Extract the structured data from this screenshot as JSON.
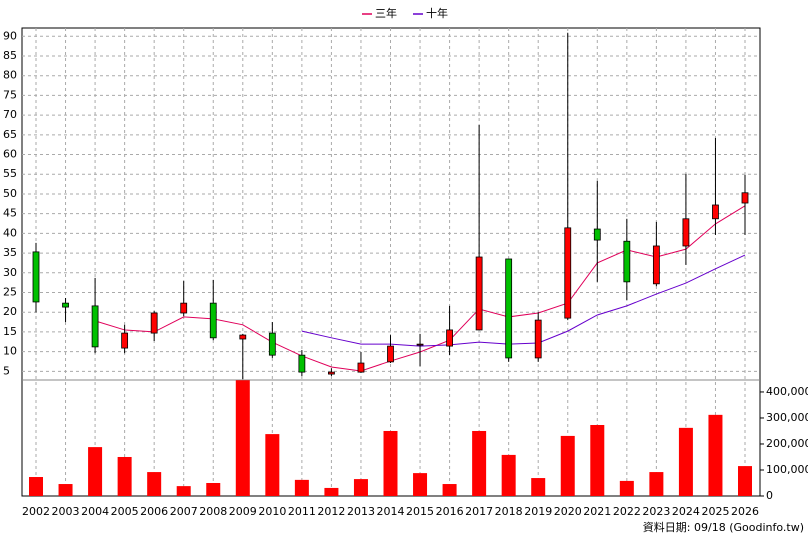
{
  "chart_data": {
    "type": "candlestick",
    "categories": [
      "2002",
      "2003",
      "2004",
      "2005",
      "2006",
      "2007",
      "2008",
      "2009",
      "2010",
      "2011",
      "2012",
      "2013",
      "2014",
      "2015",
      "2016",
      "2017",
      "2018",
      "2019",
      "2020",
      "2021",
      "2022",
      "2023",
      "2024",
      "2025",
      "2026"
    ],
    "open": [
      35.3,
      22.3,
      21.6,
      10.9,
      14.7,
      19.8,
      22.3,
      13.2,
      14.7,
      9.1,
      4.3,
      4.8,
      7.4,
      11.7,
      11.4,
      15.5,
      33.5,
      8.4,
      18.5,
      41.1,
      38.0,
      27.2,
      36.8,
      43.7,
      47.7
    ],
    "close": [
      22.6,
      21.3,
      11.2,
      14.7,
      19.8,
      22.3,
      13.5,
      14.2,
      9.1,
      4.8,
      4.8,
      7.1,
      11.4,
      11.9,
      15.5,
      34.0,
      8.4,
      18.0,
      41.4,
      38.3,
      27.7,
      36.8,
      43.7,
      47.2,
      50.3
    ],
    "high": [
      37.6,
      23.6,
      28.7,
      16.8,
      20.3,
      27.9,
      28.2,
      14.5,
      17.5,
      10.4,
      5.8,
      9.9,
      14.2,
      14.5,
      21.6,
      67.5,
      33.5,
      20.0,
      90.9,
      53.3,
      43.7,
      42.9,
      55.1,
      64.2,
      54.8
    ],
    "low": [
      20.0,
      17.5,
      9.6,
      9.6,
      12.7,
      19.0,
      12.9,
      3.0,
      8.4,
      3.8,
      3.8,
      4.6,
      7.1,
      6.3,
      9.1,
      15.5,
      7.4,
      7.4,
      18.0,
      27.7,
      23.1,
      26.6,
      32.0,
      39.6,
      39.6
    ],
    "up_color": "#ff0000",
    "down_color": "#00c000",
    "ylim": [
      2.8,
      92.1
    ],
    "yticks": [
      5,
      10,
      15,
      20,
      25,
      30,
      35,
      40,
      45,
      50,
      55,
      60,
      65,
      70,
      75,
      80,
      85,
      90
    ],
    "grid": true,
    "lines": [
      {
        "name": "三年",
        "color": "#e0005a",
        "values": [
          null,
          null,
          17.8,
          15.5,
          15.0,
          18.8,
          18.3,
          16.8,
          12.4,
          8.9,
          6.1,
          5.1,
          7.6,
          9.9,
          12.9,
          20.8,
          18.8,
          19.8,
          22.3,
          32.5,
          35.8,
          34.0,
          36.0,
          42.4,
          47.0
        ]
      },
      {
        "name": "十年",
        "color": "#6600cc",
        "values": [
          null,
          null,
          null,
          null,
          null,
          null,
          null,
          null,
          null,
          15.2,
          13.5,
          11.9,
          11.9,
          11.4,
          11.7,
          12.4,
          11.9,
          12.2,
          15.2,
          19.3,
          21.6,
          24.6,
          27.4,
          31.0,
          34.5
        ]
      }
    ],
    "volume": {
      "color": "#ff0000",
      "values": [
        73000,
        46000,
        188000,
        150000,
        92000,
        38000,
        50000,
        445000,
        238000,
        62000,
        31000,
        65000,
        250000,
        88000,
        46000,
        250000,
        158000,
        69000,
        231000,
        273000,
        58000,
        92000,
        262000,
        312000,
        115000
      ],
      "ylim": [
        0,
        446000
      ],
      "yticks": [
        0,
        {
          "value": 100000,
          "label": "100,000"
        },
        {
          "value": 200000,
          "label": "200,000"
        },
        {
          "value": 300000,
          "label": "300,000"
        },
        {
          "value": 400000,
          "label": "400,000"
        }
      ]
    },
    "footnote": "資料日期: 09/18 (Goodinfo.tw)"
  }
}
